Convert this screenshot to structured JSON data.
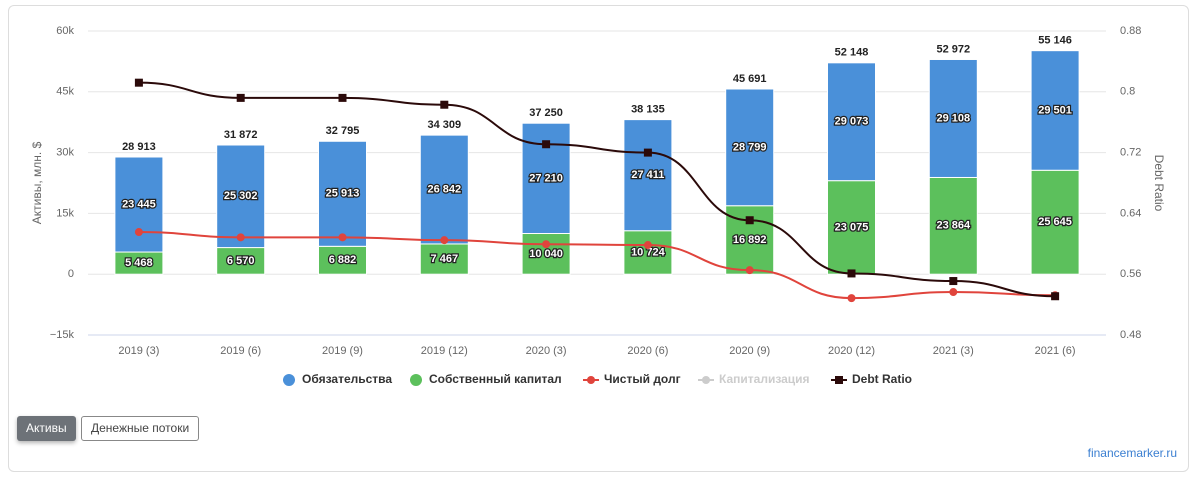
{
  "chart_data": {
    "type": "bar",
    "stacked": true,
    "categories": [
      "2019 (3)",
      "2019 (6)",
      "2019 (9)",
      "2019 (12)",
      "2020 (3)",
      "2020 (6)",
      "2020 (9)",
      "2020 (12)",
      "2021 (3)",
      "2021 (6)"
    ],
    "ylabel": "Активы, млн. $",
    "y2label": "Debt Ratio",
    "ylim": [
      -15000,
      60000
    ],
    "yticks": [
      {
        "value": -15000,
        "label": "−15k"
      },
      0,
      {
        "value": 15000,
        "label": "15k"
      },
      {
        "value": 30000,
        "label": "30k"
      },
      {
        "value": 45000,
        "label": "45k"
      },
      {
        "value": 60000,
        "label": "60k"
      }
    ],
    "y2lim": [
      0.48,
      0.88
    ],
    "y2ticks": [
      0.48,
      0.56,
      0.64,
      0.72,
      0.8,
      0.88
    ],
    "grid": true,
    "series": [
      {
        "name": "Обязательства",
        "type": "bar",
        "color": "#4a90d9",
        "values": [
          23445,
          25302,
          25913,
          26842,
          27210,
          27411,
          28799,
          29073,
          29108,
          29501
        ],
        "value_labels": [
          "23 445",
          "25 302",
          "25 913",
          "26 842",
          "27 210",
          "27 411",
          "28 799",
          "29 073",
          "29 108",
          "29 501"
        ]
      },
      {
        "name": "Собственный капитал",
        "type": "bar",
        "color": "#5cc05c",
        "values": [
          5468,
          6570,
          6882,
          7467,
          10040,
          10724,
          16892,
          23075,
          23864,
          25645
        ],
        "value_labels": [
          "5 468",
          "6 570",
          "6 882",
          "7 467",
          "10 040",
          "10 724",
          "16 892",
          "23 075",
          "23 864",
          "25 645"
        ]
      },
      {
        "name": "Чистый долг",
        "type": "line",
        "color": "#e0443c",
        "values": [
          10400,
          9100,
          9100,
          8400,
          7400,
          7200,
          1000,
          -5900,
          -4400,
          -5200
        ]
      },
      {
        "name": "Капитализация",
        "type": "line",
        "color": "#cccccc",
        "hidden": true
      },
      {
        "name": "Debt Ratio",
        "type": "line",
        "color": "#2b0a0a",
        "axis": "y2",
        "values": [
          0.812,
          0.792,
          0.792,
          0.783,
          0.731,
          0.72,
          0.631,
          0.561,
          0.551,
          0.531
        ]
      }
    ],
    "totals": [
      28913,
      31872,
      32795,
      34309,
      37250,
      38135,
      45691,
      52148,
      52972,
      55146
    ],
    "total_labels": [
      "28 913",
      "31 872",
      "32 795",
      "34 309",
      "37 250",
      "38 135",
      "45 691",
      "52 148",
      "52 972",
      "55 146"
    ]
  },
  "ui": {
    "buttons": [
      "Активы",
      "Денежные потоки"
    ],
    "watermark": "financemarker.ru"
  }
}
